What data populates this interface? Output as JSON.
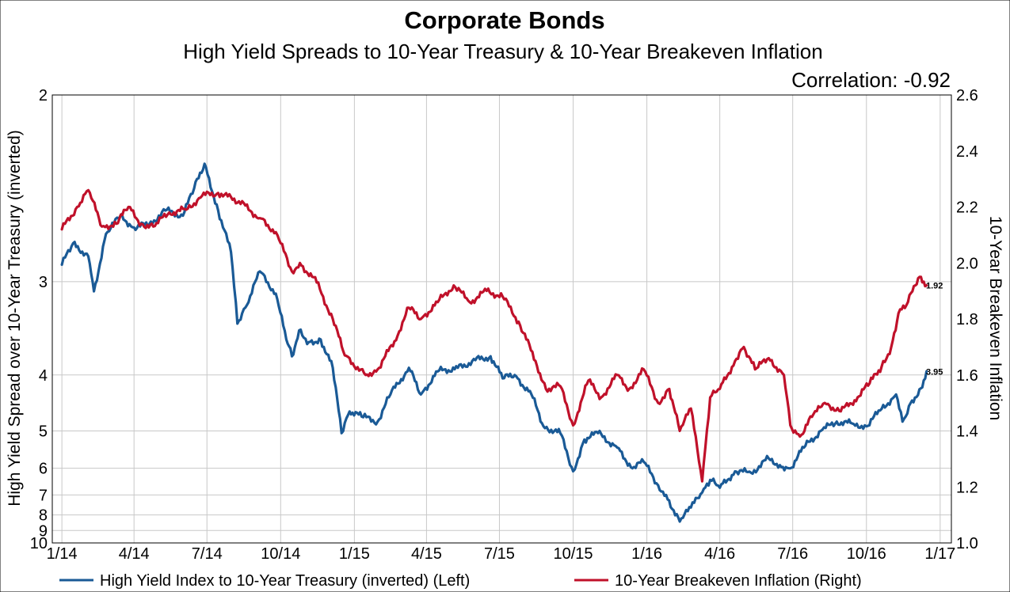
{
  "chart_data": {
    "type": "line",
    "title": "Corporate Bonds",
    "subtitle": "High Yield Spreads to 10-Year Treasury & 10-Year Breakeven Inflation",
    "annotation": "Correlation: -0.92",
    "y_left_label": "High Yield Spread over 10-Year Treasury (inverted)",
    "y_right_label": "10-Year Breakeven Inflation",
    "y_left_ticks": [
      "2",
      "3",
      "4",
      "5",
      "6",
      "7",
      "8",
      "9",
      "10"
    ],
    "y_left_range": [
      2,
      10
    ],
    "y_left_scale": "reciprocal, inverted",
    "y_right_ticks": [
      "2.6",
      "2.4",
      "2.2",
      "2.0",
      "1.8",
      "1.6",
      "1.4",
      "1.2",
      "1.0"
    ],
    "y_right_range": [
      1.0,
      2.6
    ],
    "x_ticks": [
      "1/14",
      "4/14",
      "7/14",
      "10/14",
      "1/15",
      "4/15",
      "7/15",
      "10/15",
      "1/16",
      "4/16",
      "7/16",
      "10/16",
      "1/17"
    ],
    "x_range": [
      "2013-12-20",
      "2017-01-15"
    ],
    "grid": true,
    "legend_position": "bottom",
    "series": [
      {
        "name": "High Yield Index to 10-Year Treasury (inverted)  (Left)",
        "axis": "left",
        "color": "#1a5a96",
        "end_label": "3.95",
        "data": [
          [
            "2014-01-01",
            2.87
          ],
          [
            "2014-01-15",
            2.72
          ],
          [
            "2014-02-03",
            2.81
          ],
          [
            "2014-02-10",
            3.08
          ],
          [
            "2014-02-25",
            2.66
          ],
          [
            "2014-03-15",
            2.55
          ],
          [
            "2014-04-01",
            2.62
          ],
          [
            "2014-04-20",
            2.6
          ],
          [
            "2014-05-10",
            2.52
          ],
          [
            "2014-06-01",
            2.55
          ],
          [
            "2014-06-15",
            2.4
          ],
          [
            "2014-06-28",
            2.28
          ],
          [
            "2014-07-15",
            2.52
          ],
          [
            "2014-07-31",
            2.78
          ],
          [
            "2014-08-08",
            3.38
          ],
          [
            "2014-08-20",
            3.2
          ],
          [
            "2014-09-05",
            2.92
          ],
          [
            "2014-09-25",
            3.1
          ],
          [
            "2014-10-08",
            3.55
          ],
          [
            "2014-10-15",
            3.75
          ],
          [
            "2014-10-24",
            3.45
          ],
          [
            "2014-11-05",
            3.58
          ],
          [
            "2014-11-20",
            3.55
          ],
          [
            "2014-12-05",
            3.9
          ],
          [
            "2014-12-16",
            5.05
          ],
          [
            "2014-12-26",
            4.6
          ],
          [
            "2015-01-10",
            4.7
          ],
          [
            "2015-01-30",
            4.8
          ],
          [
            "2015-02-15",
            4.3
          ],
          [
            "2015-03-10",
            3.9
          ],
          [
            "2015-03-25",
            4.3
          ],
          [
            "2015-04-15",
            3.95
          ],
          [
            "2015-05-10",
            3.9
          ],
          [
            "2015-06-01",
            3.8
          ],
          [
            "2015-06-20",
            3.75
          ],
          [
            "2015-07-05",
            4.05
          ],
          [
            "2015-07-20",
            4.0
          ],
          [
            "2015-08-10",
            4.3
          ],
          [
            "2015-08-25",
            4.9
          ],
          [
            "2015-09-15",
            5.05
          ],
          [
            "2015-10-01",
            6.1
          ],
          [
            "2015-10-15",
            5.2
          ],
          [
            "2015-11-01",
            5.05
          ],
          [
            "2015-11-25",
            5.4
          ],
          [
            "2015-12-14",
            6.0
          ],
          [
            "2015-12-28",
            5.8
          ],
          [
            "2016-01-15",
            6.6
          ],
          [
            "2016-01-25",
            7.0
          ],
          [
            "2016-02-11",
            8.4
          ],
          [
            "2016-02-25",
            7.6
          ],
          [
            "2016-03-10",
            6.9
          ],
          [
            "2016-03-20",
            6.4
          ],
          [
            "2016-04-01",
            6.7
          ],
          [
            "2016-04-20",
            6.1
          ],
          [
            "2016-05-10",
            6.15
          ],
          [
            "2016-06-01",
            5.7
          ],
          [
            "2016-06-15",
            5.9
          ],
          [
            "2016-06-28",
            6.0
          ],
          [
            "2016-07-15",
            5.4
          ],
          [
            "2016-08-05",
            5.0
          ],
          [
            "2016-08-25",
            4.8
          ],
          [
            "2016-09-15",
            4.85
          ],
          [
            "2016-10-01",
            4.9
          ],
          [
            "2016-10-20",
            4.55
          ],
          [
            "2016-11-07",
            4.3
          ],
          [
            "2016-11-15",
            4.8
          ],
          [
            "2016-11-25",
            4.45
          ],
          [
            "2016-12-08",
            4.2
          ],
          [
            "2016-12-15",
            3.95
          ]
        ]
      },
      {
        "name": "10-Year Breakeven Inflation (Right)",
        "axis": "right",
        "color": "#c0112a",
        "end_label": "1.92",
        "data": [
          [
            "2014-01-01",
            2.12
          ],
          [
            "2014-01-20",
            2.2
          ],
          [
            "2014-02-03",
            2.26
          ],
          [
            "2014-02-20",
            2.13
          ],
          [
            "2014-03-10",
            2.14
          ],
          [
            "2014-03-25",
            2.2
          ],
          [
            "2014-04-10",
            2.14
          ],
          [
            "2014-04-25",
            2.13
          ],
          [
            "2014-05-15",
            2.18
          ],
          [
            "2014-06-05",
            2.19
          ],
          [
            "2014-06-25",
            2.24
          ],
          [
            "2014-07-15",
            2.25
          ],
          [
            "2014-08-10",
            2.22
          ],
          [
            "2014-09-05",
            2.16
          ],
          [
            "2014-09-25",
            2.11
          ],
          [
            "2014-10-15",
            1.97
          ],
          [
            "2014-10-25",
            2.0
          ],
          [
            "2014-11-15",
            1.93
          ],
          [
            "2014-12-05",
            1.8
          ],
          [
            "2014-12-20",
            1.67
          ],
          [
            "2015-01-15",
            1.6
          ],
          [
            "2015-01-30",
            1.62
          ],
          [
            "2015-02-20",
            1.72
          ],
          [
            "2015-03-10",
            1.84
          ],
          [
            "2015-03-25",
            1.8
          ],
          [
            "2015-04-15",
            1.86
          ],
          [
            "2015-05-05",
            1.92
          ],
          [
            "2015-05-25",
            1.86
          ],
          [
            "2015-06-15",
            1.9
          ],
          [
            "2015-07-05",
            1.88
          ],
          [
            "2015-07-25",
            1.79
          ],
          [
            "2015-08-15",
            1.65
          ],
          [
            "2015-08-28",
            1.55
          ],
          [
            "2015-09-15",
            1.56
          ],
          [
            "2015-10-01",
            1.42
          ],
          [
            "2015-10-20",
            1.58
          ],
          [
            "2015-11-05",
            1.52
          ],
          [
            "2015-11-25",
            1.6
          ],
          [
            "2015-12-10",
            1.55
          ],
          [
            "2015-12-28",
            1.62
          ],
          [
            "2016-01-15",
            1.5
          ],
          [
            "2016-01-29",
            1.55
          ],
          [
            "2016-02-11",
            1.4
          ],
          [
            "2016-02-25",
            1.48
          ],
          [
            "2016-03-10",
            1.22
          ],
          [
            "2016-03-20",
            1.52
          ],
          [
            "2016-04-01",
            1.55
          ],
          [
            "2016-04-20",
            1.65
          ],
          [
            "2016-05-01",
            1.7
          ],
          [
            "2016-05-15",
            1.62
          ],
          [
            "2016-06-01",
            1.66
          ],
          [
            "2016-06-20",
            1.6
          ],
          [
            "2016-06-28",
            1.42
          ],
          [
            "2016-07-10",
            1.38
          ],
          [
            "2016-07-25",
            1.45
          ],
          [
            "2016-08-10",
            1.5
          ],
          [
            "2016-08-30",
            1.47
          ],
          [
            "2016-09-20",
            1.52
          ],
          [
            "2016-10-05",
            1.57
          ],
          [
            "2016-10-20",
            1.63
          ],
          [
            "2016-11-01",
            1.7
          ],
          [
            "2016-11-10",
            1.82
          ],
          [
            "2016-11-20",
            1.85
          ],
          [
            "2016-12-01",
            1.92
          ],
          [
            "2016-12-08",
            1.95
          ],
          [
            "2016-12-15",
            1.92
          ]
        ]
      }
    ]
  }
}
